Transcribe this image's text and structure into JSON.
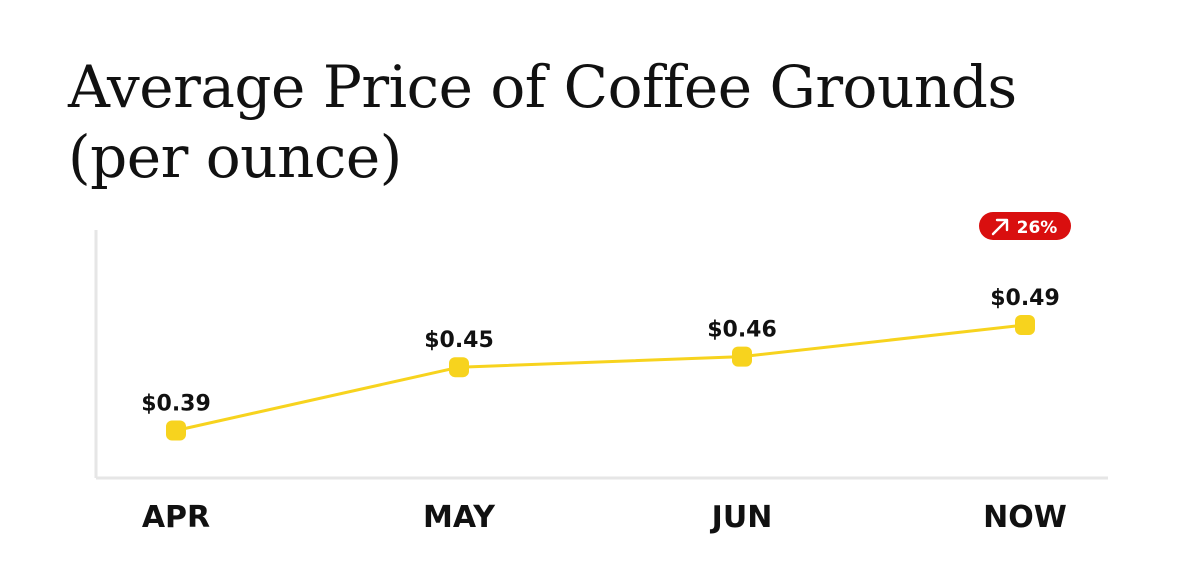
{
  "chart_data": {
    "type": "line",
    "title_lines": [
      "Average Price of Coffee Grounds",
      "(per ounce)"
    ],
    "categories": [
      "APR",
      "MAY",
      "JUN",
      "NOW"
    ],
    "values": [
      0.39,
      0.45,
      0.46,
      0.49
    ],
    "value_labels": [
      "$0.39",
      "$0.45",
      "$0.46",
      "$0.49"
    ],
    "xlabel": "",
    "ylabel": "",
    "ylim": [
      0.345,
      0.58
    ],
    "grid": false,
    "legend": "none",
    "annotation": {
      "category": "NOW",
      "text": "26%",
      "icon": "arrow-up-right-icon",
      "color": "#d90f0f"
    },
    "colors": {
      "line": "#f7d31e",
      "axis": "#e6e6e6",
      "text": "#111111"
    }
  }
}
